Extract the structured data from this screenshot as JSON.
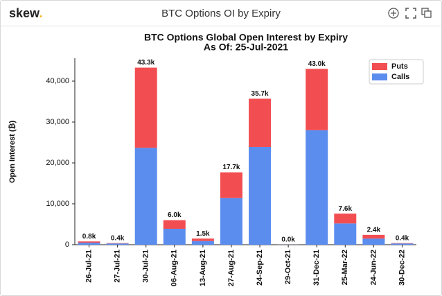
{
  "header": {
    "logo": "skew",
    "logo_dot": ".",
    "title": "BTC Options OI by Expiry"
  },
  "chart_data": {
    "type": "stacked_bar",
    "title": "BTC Options Global Open Interest by Expiry",
    "subtitle": "As Of: 25-Jul-2021",
    "y_label": "Open Interest (₿)",
    "categories": [
      "26-Jul-21",
      "27-Jul-21",
      "30-Jul-21",
      "06-Aug-21",
      "13-Aug-21",
      "27-Aug-21",
      "24-Sep-21",
      "29-Oct-21",
      "31-Dec-21",
      "25-Mar-22",
      "24-Jun-22",
      "30-Dec-22"
    ],
    "series": [
      {
        "name": "Calls",
        "color": "#5b8def",
        "values": [
          500,
          300,
          23700,
          3900,
          900,
          11400,
          23900,
          30,
          28000,
          5200,
          1500,
          300
        ]
      },
      {
        "name": "Puts",
        "color": "#f24e52",
        "values": [
          300,
          100,
          19600,
          2100,
          600,
          6300,
          11800,
          10,
          15000,
          2400,
          900,
          100
        ]
      }
    ],
    "total_labels": [
      "0.8k",
      "0.4k",
      "43.3k",
      "6.0k",
      "1.5k",
      "17.7k",
      "35.7k",
      "0.0k",
      "43.0k",
      "7.6k",
      "2.4k",
      "0.4k"
    ],
    "ylim": [
      0,
      45600
    ],
    "yticks": [
      0,
      {
        "value": 10000,
        "label": "10,000"
      },
      {
        "value": 20000,
        "label": "20,000"
      },
      {
        "value": 30000,
        "label": "30,000"
      },
      {
        "value": 40000,
        "label": "40,000"
      }
    ],
    "legend": "upper right",
    "grid": false
  }
}
